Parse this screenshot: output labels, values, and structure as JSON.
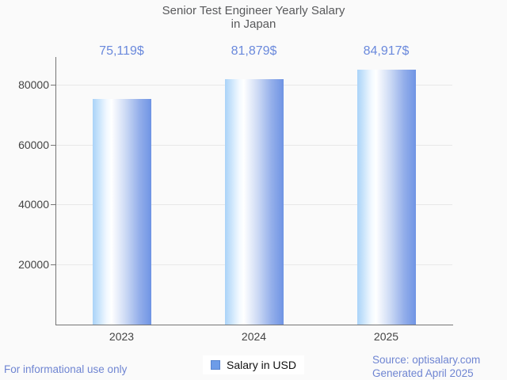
{
  "title": {
    "line1": "Senior Test Engineer Yearly Salary",
    "line2": "in Japan"
  },
  "chart_data": {
    "type": "bar",
    "title": "Senior Test Engineer Yearly Salary in Japan",
    "categories": [
      "2023",
      "2024",
      "2025"
    ],
    "values": [
      75119,
      81879,
      84917
    ],
    "value_labels": [
      "75,119$",
      "81,879$",
      "84,917$"
    ],
    "series": [
      {
        "name": "Salary in USD",
        "values": [
          75119,
          81879,
          84917
        ]
      }
    ],
    "xlabel": "",
    "ylabel": "",
    "yticks": [
      20000,
      40000,
      60000,
      80000
    ],
    "ylim": [
      0,
      89240
    ],
    "grid": true,
    "legend_position": "bottom"
  },
  "legend": {
    "label": "Salary in USD",
    "marker_color": "#6d9ce8"
  },
  "footer": {
    "left": "For informational use only",
    "source": "Source: optisalary.com",
    "generated": "Generated April 2025"
  },
  "colors": {
    "background": "#fafafa",
    "title_text": "#58595b",
    "value_label_text": "#6a89dc",
    "footer_text": "#6f85d2",
    "axis_label_text": "#444444",
    "axis_line": "#757575",
    "gridline": "#e8e8e8",
    "bar_gradient_left": "#aad3f8",
    "bar_gradient_mid": "#ffffff",
    "bar_gradient_right": "#6f94e4"
  }
}
